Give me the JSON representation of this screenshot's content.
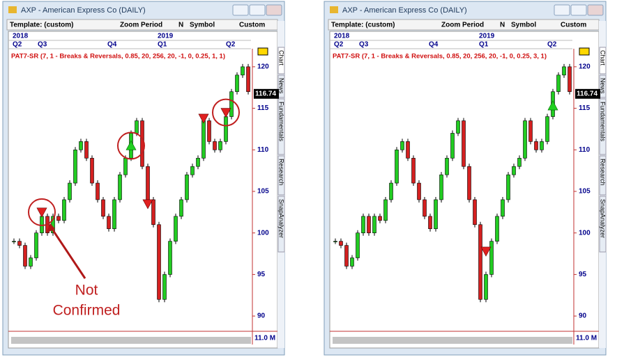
{
  "windows": [
    {
      "title": "AXP - American Express Co (DAILY)",
      "toolbar": {
        "template": "Template: (custom)",
        "zoom": "Zoom",
        "period": "Period",
        "n": "N",
        "symbol": "Symbol",
        "custom": "Custom"
      },
      "years": [
        "2018",
        "2019"
      ],
      "quarters": [
        "Q2",
        "Q3",
        "Q4",
        "Q1",
        "Q2"
      ],
      "indicator": "PAT7-SR (7, 1 - Breaks & Reversals, 0.85, 20, 256, 20, -1, 0, 0.25, 1, 1)",
      "ylim": [
        88.5,
        121.5
      ],
      "yticks": [
        90,
        95,
        100,
        105,
        110,
        115,
        120
      ],
      "last_price": 116.74,
      "volume_label": "11.0 M",
      "side_tabs": [
        "Chart",
        "News",
        "Fundamentals",
        "Research",
        "SnapAnalyzer"
      ],
      "closes": [
        99,
        98.5,
        96,
        97,
        100,
        102,
        100,
        102,
        101.5,
        104,
        106,
        110,
        111,
        109,
        106,
        104,
        102,
        100.5,
        104,
        107,
        109,
        112,
        113.5,
        108,
        104,
        101,
        92,
        95,
        99,
        102,
        104,
        107,
        108,
        109,
        113.5,
        111,
        110,
        111,
        114,
        117,
        119,
        120,
        117
      ],
      "sell_signals": [
        null,
        null,
        null,
        null,
        null,
        102.5,
        null,
        null,
        null,
        null,
        null,
        null,
        null,
        null,
        null,
        null,
        null,
        null,
        null,
        null,
        null,
        null,
        null,
        null,
        103.5,
        null,
        null,
        null,
        null,
        null,
        null,
        null,
        null,
        null,
        113.8,
        null,
        null,
        null,
        114.5,
        null,
        null,
        null,
        null
      ],
      "buy_signals": [
        null,
        null,
        null,
        null,
        null,
        null,
        null,
        null,
        null,
        null,
        null,
        null,
        null,
        null,
        null,
        null,
        null,
        null,
        null,
        null,
        null,
        110.5,
        null,
        null,
        null,
        null,
        null,
        null,
        null,
        null,
        null,
        null,
        null,
        null,
        null,
        null,
        null,
        null,
        null,
        null,
        null,
        null,
        null
      ],
      "annotation": [
        "Not",
        "Confirmed"
      ]
    },
    {
      "title": "AXP - American Express Co (DAILY)",
      "toolbar": {
        "template": "Template: (custom)",
        "zoom": "Zoom",
        "period": "Period",
        "n": "N",
        "symbol": "Symbol",
        "custom": "Custom"
      },
      "years": [
        "2018",
        "2019"
      ],
      "quarters": [
        "Q2",
        "Q3",
        "Q4",
        "Q1",
        "Q2"
      ],
      "indicator": "PAT7-SR (7, 1 - Breaks & Reversals, 0.85, 20, 256, 20, -1, 0, 0.25, 3, 1)",
      "ylim": [
        88.5,
        121.5
      ],
      "yticks": [
        90,
        95,
        100,
        105,
        110,
        115,
        120
      ],
      "last_price": 116.74,
      "volume_label": "11.0 M",
      "side_tabs": [
        "Chart",
        "News",
        "Fundamentals",
        "Research",
        "SnapAnalyzer"
      ],
      "closes": [
        99,
        98.5,
        96,
        97,
        100,
        102,
        100,
        102,
        101.5,
        104,
        106,
        110,
        111,
        109,
        106,
        104,
        102,
        100.5,
        104,
        107,
        109,
        112,
        113.5,
        108,
        104,
        101,
        92,
        95,
        99,
        102,
        104,
        107,
        108,
        109,
        113.5,
        111,
        110,
        111,
        114,
        117,
        119,
        120,
        117
      ],
      "sell_signals": [
        null,
        null,
        null,
        null,
        null,
        null,
        null,
        null,
        null,
        null,
        null,
        null,
        null,
        null,
        null,
        null,
        null,
        null,
        null,
        null,
        null,
        null,
        null,
        null,
        null,
        null,
        null,
        97.8,
        null,
        null,
        null,
        null,
        null,
        null,
        null,
        null,
        null,
        null,
        null,
        null,
        null,
        null,
        null
      ],
      "buy_signals": [
        null,
        null,
        null,
        null,
        null,
        null,
        null,
        null,
        null,
        null,
        null,
        null,
        null,
        null,
        null,
        null,
        null,
        null,
        null,
        null,
        null,
        null,
        null,
        null,
        null,
        null,
        null,
        null,
        null,
        null,
        null,
        null,
        null,
        null,
        null,
        null,
        null,
        null,
        null,
        115.3,
        null,
        null,
        null
      ]
    }
  ]
}
